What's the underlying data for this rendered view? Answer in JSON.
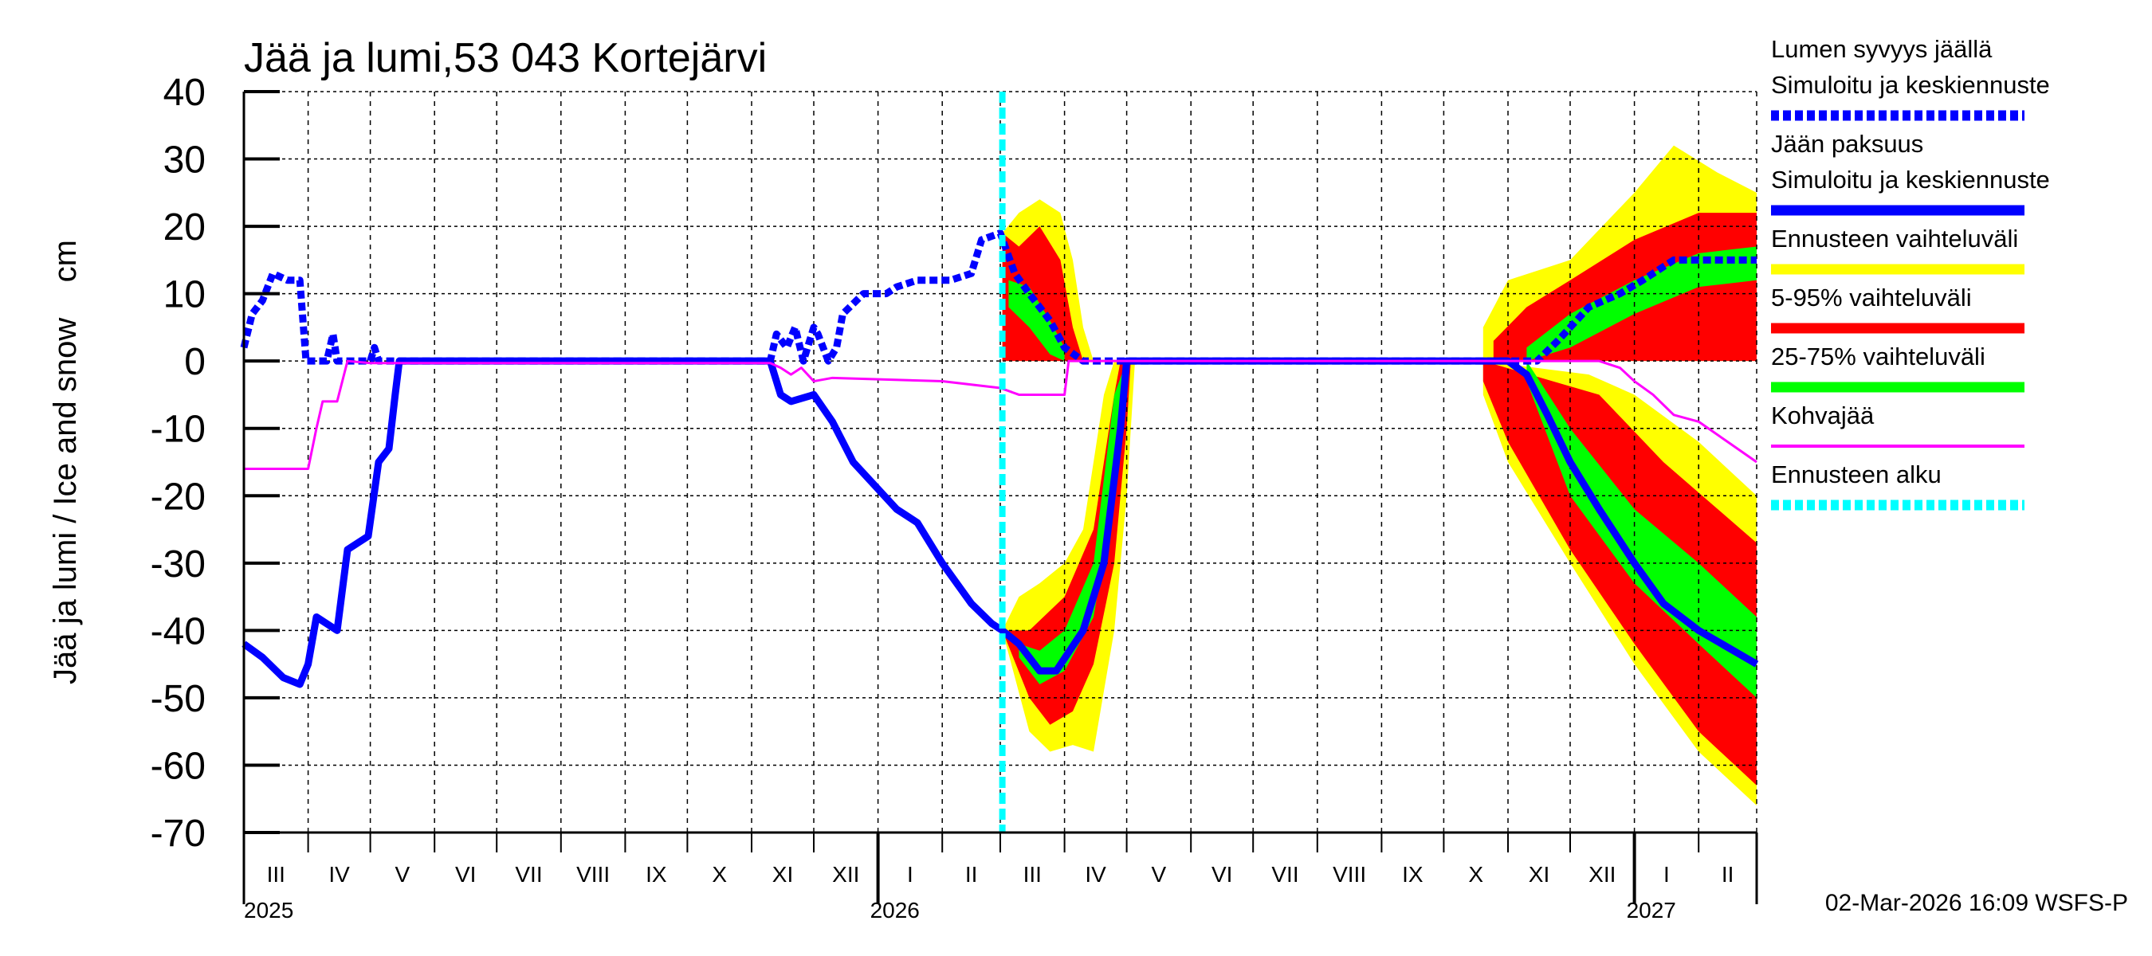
{
  "chart_data": {
    "type": "line",
    "title": "Jää ja lumi,53 043 Kortejärvi",
    "ylabel": "Jää ja lumi / Ice and snow    cm",
    "ylim": [
      -70,
      40
    ],
    "yticks": [
      40,
      30,
      20,
      10,
      0,
      -10,
      -20,
      -30,
      -40,
      -50,
      -60,
      -70
    ],
    "xlim": [
      "2025-03-01",
      "2027-03-01"
    ],
    "grid": true,
    "legend_placement": "right",
    "month_labels": [
      "III",
      "IV",
      "V",
      "VI",
      "VII",
      "VIII",
      "IX",
      "X",
      "XI",
      "XII",
      "I",
      "II",
      "III",
      "IV",
      "V",
      "VI",
      "VII",
      "VIII",
      "IX",
      "X",
      "XI",
      "XII",
      "I",
      "II"
    ],
    "year_labels": [
      {
        "date": "2025-03-01",
        "label": "2025"
      },
      {
        "date": "2026-01-01",
        "label": "2026"
      },
      {
        "date": "2027-01-01",
        "label": "2027"
      }
    ],
    "forecast_start": "2026-03-02",
    "footer": "02-Mar-2026 16:09 WSFS-P",
    "colors": {
      "snow": "#0000ff",
      "ice": "#0000ff",
      "yellow": "#ffff00",
      "red": "#ff0000",
      "green": "#00ff00",
      "kohva": "#ff00ff",
      "forecast": "#00ffff"
    },
    "legend": [
      {
        "label": "Lumen syvyys jäällä",
        "label2": "Simuloitu ja keskiennuste",
        "color": "#0000ff",
        "style": "dashed"
      },
      {
        "label": "Jään paksuus",
        "label2": "Simuloitu ja keskiennuste",
        "color": "#0000ff",
        "style": "solid"
      },
      {
        "label": "Ennusteen vaihteluväli",
        "color": "#ffff00",
        "style": "solid"
      },
      {
        "label": "5-95% vaihteluväli",
        "color": "#ff0000",
        "style": "solid"
      },
      {
        "label": "25-75% vaihteluväli",
        "color": "#00ff00",
        "style": "solid"
      },
      {
        "label": "Kohvajää",
        "color": "#ff00ff",
        "style": "thin"
      },
      {
        "label": "Ennusteen alku",
        "color": "#00ffff",
        "style": "dashed"
      }
    ],
    "bands": [
      {
        "name": "Ennusteen vaihteluväli",
        "color": "#ffff00",
        "upper": [
          [
            "2026-03-02",
            19
          ],
          [
            "2026-03-10",
            22
          ],
          [
            "2026-03-20",
            24
          ],
          [
            "2026-03-30",
            22
          ],
          [
            "2026-04-05",
            15
          ],
          [
            "2026-04-10",
            5
          ],
          [
            "2026-04-15",
            0
          ]
        ],
        "lower": [
          [
            "2026-03-02",
            0
          ],
          [
            "2026-04-15",
            0
          ]
        ]
      },
      {
        "name": "5-95% vaihteluväli",
        "color": "#ff0000",
        "upper": [
          [
            "2026-03-02",
            19
          ],
          [
            "2026-03-10",
            17
          ],
          [
            "2026-03-20",
            20
          ],
          [
            "2026-03-30",
            15
          ],
          [
            "2026-04-05",
            5
          ],
          [
            "2026-04-10",
            0
          ]
        ],
        "lower": [
          [
            "2026-03-02",
            0
          ],
          [
            "2026-04-10",
            0
          ]
        ]
      },
      {
        "name": "25-75% vaihteluväli",
        "color": "#00ff00",
        "upper": [
          [
            "2026-03-05",
            12
          ],
          [
            "2026-03-15",
            11
          ],
          [
            "2026-03-25",
            6
          ],
          [
            "2026-04-01",
            2
          ]
        ],
        "lower": [
          [
            "2026-03-05",
            8
          ],
          [
            "2026-03-15",
            5
          ],
          [
            "2026-03-25",
            1
          ],
          [
            "2026-04-01",
            0
          ]
        ]
      },
      {
        "name": "Ennusteen vaihteluväli",
        "color": "#ffff00",
        "upper": [
          [
            "2026-03-02",
            -40
          ],
          [
            "2026-03-10",
            -35
          ],
          [
            "2026-03-20",
            -33
          ],
          [
            "2026-04-01",
            -30
          ],
          [
            "2026-04-10",
            -25
          ],
          [
            "2026-04-20",
            -5
          ],
          [
            "2026-04-25",
            0
          ],
          [
            "2026-05-05",
            0
          ]
        ],
        "lower": [
          [
            "2026-03-02",
            -40
          ],
          [
            "2026-03-15",
            -55
          ],
          [
            "2026-03-25",
            -58
          ],
          [
            "2026-04-05",
            -57
          ],
          [
            "2026-04-15",
            -58
          ],
          [
            "2026-04-25",
            -40
          ],
          [
            "2026-05-01",
            -20
          ],
          [
            "2026-05-05",
            0
          ]
        ]
      },
      {
        "name": "5-95% vaihteluväli",
        "color": "#ff0000",
        "upper": [
          [
            "2026-03-02",
            -40
          ],
          [
            "2026-03-15",
            -40
          ],
          [
            "2026-04-01",
            -35
          ],
          [
            "2026-04-15",
            -25
          ],
          [
            "2026-04-25",
            -5
          ],
          [
            "2026-04-28",
            0
          ],
          [
            "2026-05-03",
            0
          ]
        ],
        "lower": [
          [
            "2026-03-02",
            -40
          ],
          [
            "2026-03-15",
            -50
          ],
          [
            "2026-03-25",
            -54
          ],
          [
            "2026-04-05",
            -52
          ],
          [
            "2026-04-15",
            -45
          ],
          [
            "2026-04-25",
            -30
          ],
          [
            "2026-05-01",
            -10
          ],
          [
            "2026-05-03",
            0
          ]
        ]
      },
      {
        "name": "25-75% vaihteluväli",
        "color": "#00ff00",
        "upper": [
          [
            "2026-03-10",
            -42
          ],
          [
            "2026-03-20",
            -43
          ],
          [
            "2026-04-01",
            -40
          ],
          [
            "2026-04-15",
            -30
          ],
          [
            "2026-04-25",
            -5
          ],
          [
            "2026-05-01",
            0
          ]
        ],
        "lower": [
          [
            "2026-03-10",
            -44
          ],
          [
            "2026-03-20",
            -48
          ],
          [
            "2026-04-01",
            -46
          ],
          [
            "2026-04-15",
            -38
          ],
          [
            "2026-04-25",
            -20
          ],
          [
            "2026-05-01",
            0
          ]
        ]
      },
      {
        "name": "Ennusteen vaihteluväli",
        "color": "#ffff00",
        "upper": [
          [
            "2026-10-20",
            5
          ],
          [
            "2026-11-01",
            12
          ],
          [
            "2026-12-01",
            15
          ],
          [
            "2027-01-01",
            25
          ],
          [
            "2027-01-20",
            32
          ],
          [
            "2027-02-10",
            28
          ],
          [
            "2027-03-01",
            25
          ]
        ],
        "lower": [
          [
            "2026-10-20",
            0
          ],
          [
            "2027-03-01",
            0
          ]
        ]
      },
      {
        "name": "5-95% vaihteluväli",
        "color": "#ff0000",
        "upper": [
          [
            "2026-10-25",
            3
          ],
          [
            "2026-11-10",
            8
          ],
          [
            "2026-12-01",
            12
          ],
          [
            "2027-01-01",
            18
          ],
          [
            "2027-02-01",
            22
          ],
          [
            "2027-03-01",
            22
          ]
        ],
        "lower": [
          [
            "2026-10-25",
            0
          ],
          [
            "2027-03-01",
            0
          ]
        ]
      },
      {
        "name": "25-75% vaihteluväli",
        "color": "#00ff00",
        "upper": [
          [
            "2026-11-10",
            2
          ],
          [
            "2026-12-01",
            7
          ],
          [
            "2027-01-01",
            12
          ],
          [
            "2027-02-01",
            16
          ],
          [
            "2027-03-01",
            17
          ]
        ],
        "lower": [
          [
            "2026-11-10",
            0
          ],
          [
            "2026-12-01",
            2
          ],
          [
            "2027-01-01",
            7
          ],
          [
            "2027-02-01",
            11
          ],
          [
            "2027-03-01",
            12
          ]
        ]
      },
      {
        "name": "Ennusteen vaihteluväli",
        "color": "#ffff00",
        "upper": [
          [
            "2026-10-20",
            0
          ],
          [
            "2026-12-10",
            -2
          ],
          [
            "2027-01-01",
            -5
          ],
          [
            "2027-02-01",
            -12
          ],
          [
            "2027-03-01",
            -20
          ]
        ],
        "lower": [
          [
            "2026-10-20",
            -5
          ],
          [
            "2026-11-01",
            -15
          ],
          [
            "2026-12-01",
            -30
          ],
          [
            "2027-01-01",
            -45
          ],
          [
            "2027-02-01",
            -58
          ],
          [
            "2027-03-01",
            -66
          ]
        ]
      },
      {
        "name": "5-95% vaihteluväli",
        "color": "#ff0000",
        "upper": [
          [
            "2026-10-20",
            0
          ],
          [
            "2026-12-15",
            -5
          ],
          [
            "2027-01-15",
            -15
          ],
          [
            "2027-03-01",
            -27
          ]
        ],
        "lower": [
          [
            "2026-10-20",
            -3
          ],
          [
            "2026-11-01",
            -12
          ],
          [
            "2026-12-01",
            -28
          ],
          [
            "2027-01-01",
            -42
          ],
          [
            "2027-02-01",
            -55
          ],
          [
            "2027-03-01",
            -63
          ]
        ]
      },
      {
        "name": "25-75% vaihteluväli",
        "color": "#00ff00",
        "upper": [
          [
            "2026-11-10",
            0
          ],
          [
            "2026-12-01",
            -10
          ],
          [
            "2027-01-01",
            -22
          ],
          [
            "2027-02-01",
            -30
          ],
          [
            "2027-03-01",
            -38
          ]
        ],
        "lower": [
          [
            "2026-11-10",
            -3
          ],
          [
            "2026-12-01",
            -20
          ],
          [
            "2027-01-01",
            -33
          ],
          [
            "2027-02-01",
            -42
          ],
          [
            "2027-03-01",
            -50
          ]
        ]
      }
    ],
    "series": [
      {
        "name": "Lumen syvyys jäällä",
        "color": "#0000ff",
        "style": "dashed",
        "points": [
          [
            "2025-03-01",
            2
          ],
          [
            "2025-03-05",
            7
          ],
          [
            "2025-03-10",
            9
          ],
          [
            "2025-03-15",
            13
          ],
          [
            "2025-03-22",
            12
          ],
          [
            "2025-03-28",
            12
          ],
          [
            "2025-03-31",
            0
          ],
          [
            "2025-04-10",
            0
          ],
          [
            "2025-04-13",
            4
          ],
          [
            "2025-04-15",
            0
          ],
          [
            "2025-05-01",
            0
          ],
          [
            "2025-05-03",
            2
          ],
          [
            "2025-05-05",
            0
          ],
          [
            "2025-11-10",
            0
          ],
          [
            "2025-11-13",
            4
          ],
          [
            "2025-11-18",
            2
          ],
          [
            "2025-11-22",
            5
          ],
          [
            "2025-11-26",
            0
          ],
          [
            "2025-12-01",
            5
          ],
          [
            "2025-12-03",
            4
          ],
          [
            "2025-12-08",
            0
          ],
          [
            "2025-12-12",
            2
          ],
          [
            "2025-12-15",
            7
          ],
          [
            "2025-12-25",
            10
          ],
          [
            "2026-01-05",
            10
          ],
          [
            "2026-01-10",
            11
          ],
          [
            "2026-01-20",
            12
          ],
          [
            "2026-02-05",
            12
          ],
          [
            "2026-02-15",
            13
          ],
          [
            "2026-02-20",
            18
          ],
          [
            "2026-03-01",
            19
          ],
          [
            "2026-03-08",
            13
          ],
          [
            "2026-03-15",
            10
          ],
          [
            "2026-03-25",
            6
          ],
          [
            "2026-04-01",
            2
          ],
          [
            "2026-04-10",
            0
          ],
          [
            "2026-11-15",
            0
          ],
          [
            "2026-11-25",
            3
          ],
          [
            "2026-12-10",
            8
          ],
          [
            "2026-12-25",
            10
          ],
          [
            "2027-01-05",
            12
          ],
          [
            "2027-01-20",
            15
          ],
          [
            "2027-03-01",
            15
          ]
        ]
      },
      {
        "name": "Jään paksuus",
        "color": "#0000ff",
        "style": "solid",
        "points": [
          [
            "2025-03-01",
            -42
          ],
          [
            "2025-03-10",
            -44
          ],
          [
            "2025-03-20",
            -47
          ],
          [
            "2025-03-28",
            -48
          ],
          [
            "2025-04-01",
            -45
          ],
          [
            "2025-04-05",
            -38
          ],
          [
            "2025-04-15",
            -40
          ],
          [
            "2025-04-20",
            -28
          ],
          [
            "2025-04-30",
            -26
          ],
          [
            "2025-05-05",
            -15
          ],
          [
            "2025-05-10",
            -13
          ],
          [
            "2025-05-13",
            -5
          ],
          [
            "2025-05-15",
            0
          ],
          [
            "2025-11-10",
            0
          ],
          [
            "2025-11-15",
            -5
          ],
          [
            "2025-11-20",
            -6
          ],
          [
            "2025-12-01",
            -5
          ],
          [
            "2025-12-10",
            -9
          ],
          [
            "2025-12-20",
            -15
          ],
          [
            "2026-01-10",
            -22
          ],
          [
            "2026-01-20",
            -24
          ],
          [
            "2026-02-01",
            -30
          ],
          [
            "2026-02-15",
            -36
          ],
          [
            "2026-02-25",
            -39
          ],
          [
            "2026-03-02",
            -40
          ],
          [
            "2026-03-10",
            -42
          ],
          [
            "2026-03-20",
            -46
          ],
          [
            "2026-03-28",
            -46
          ],
          [
            "2026-04-10",
            -40
          ],
          [
            "2026-04-20",
            -30
          ],
          [
            "2026-04-28",
            -10
          ],
          [
            "2026-05-01",
            0
          ],
          [
            "2026-11-01",
            0
          ],
          [
            "2026-11-10",
            -2
          ],
          [
            "2026-11-20",
            -8
          ],
          [
            "2026-12-01",
            -15
          ],
          [
            "2026-12-15",
            -22
          ],
          [
            "2027-01-01",
            -30
          ],
          [
            "2027-01-15",
            -36
          ],
          [
            "2027-02-01",
            -40
          ],
          [
            "2027-03-01",
            -45
          ]
        ]
      },
      {
        "name": "Kohvajää",
        "color": "#ff00ff",
        "style": "thin",
        "points": [
          [
            "2025-03-01",
            -16
          ],
          [
            "2025-04-01",
            -16
          ],
          [
            "2025-04-05",
            -10
          ],
          [
            "2025-04-08",
            -6
          ],
          [
            "2025-04-15",
            -6
          ],
          [
            "2025-04-20",
            0
          ],
          [
            "2025-05-01",
            -0.3
          ],
          [
            "2025-11-10",
            -0.3
          ],
          [
            "2025-11-15",
            -1
          ],
          [
            "2025-11-20",
            -2
          ],
          [
            "2025-11-25",
            -1
          ],
          [
            "2025-12-01",
            -3
          ],
          [
            "2025-12-10",
            -2.5
          ],
          [
            "2026-02-01",
            -3
          ],
          [
            "2026-03-01",
            -4
          ],
          [
            "2026-03-10",
            -5
          ],
          [
            "2026-04-01",
            -5
          ],
          [
            "2026-04-03",
            0
          ],
          [
            "2026-12-15",
            0
          ],
          [
            "2026-12-25",
            -1
          ],
          [
            "2027-01-01",
            -3
          ],
          [
            "2027-01-10",
            -5
          ],
          [
            "2027-01-20",
            -8
          ],
          [
            "2027-02-01",
            -9
          ],
          [
            "2027-02-15",
            -12
          ],
          [
            "2027-03-01",
            -15
          ]
        ]
      }
    ]
  }
}
